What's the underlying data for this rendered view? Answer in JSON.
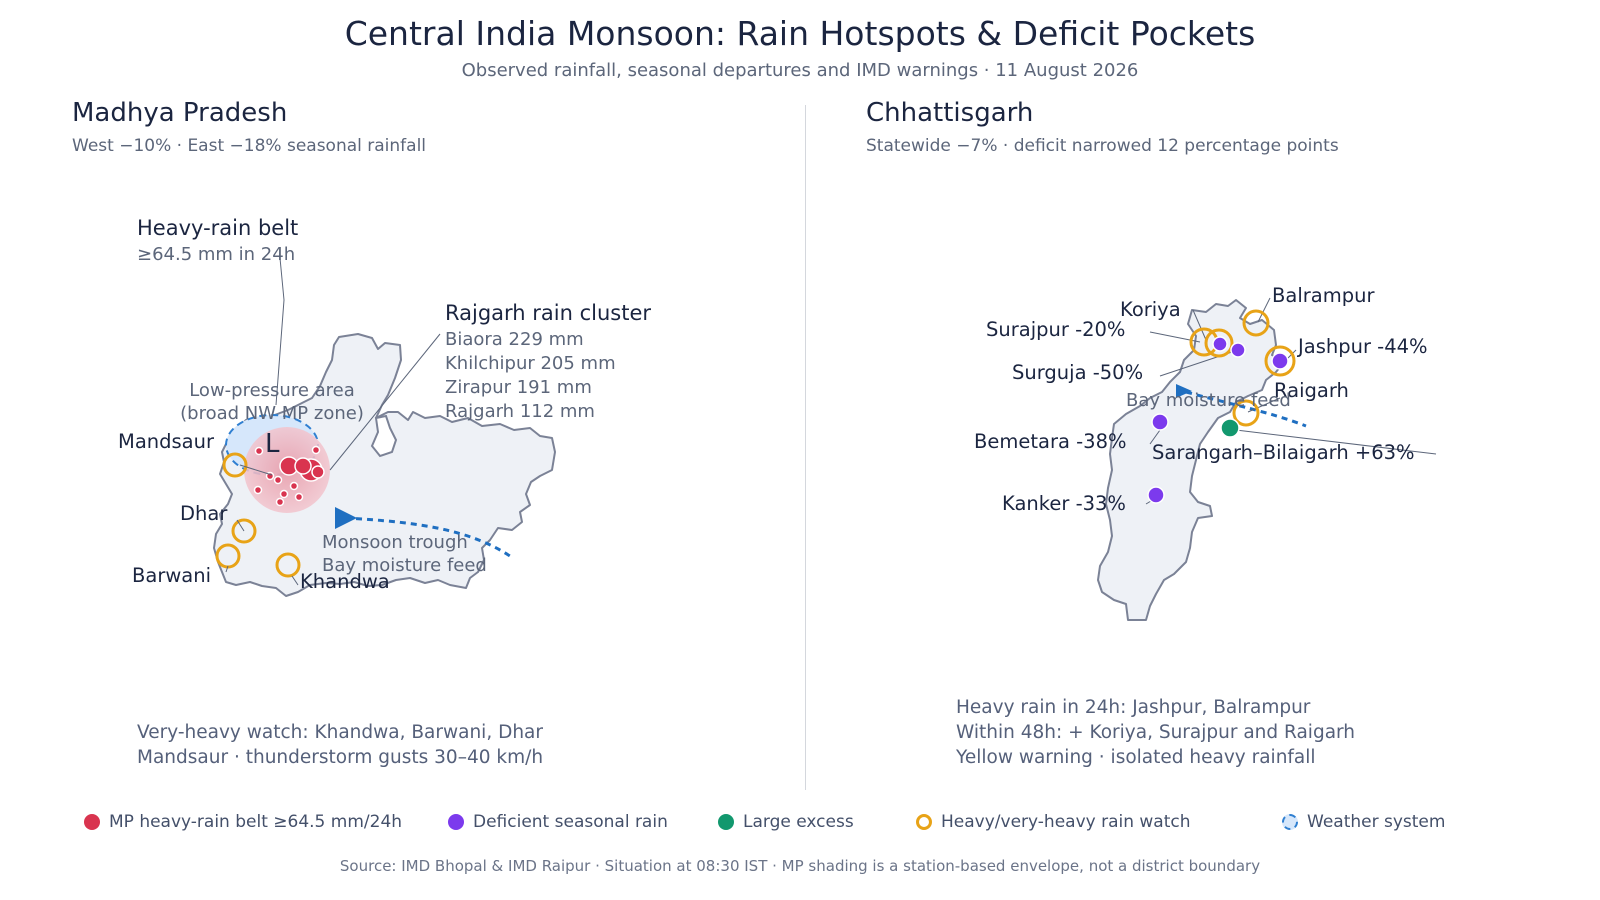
{
  "title": "Central India Monsoon: Rain Hotspots & Deficit Pockets",
  "subtitle": "Observed rainfall, seasonal departures and IMD warnings · 11 August 2026",
  "mp": {
    "title": "Madhya Pradesh",
    "subtitle": "West −10% · East −18% seasonal rainfall",
    "heavy_belt_title": "Heavy-rain belt",
    "heavy_belt_sub": "≥64.5 mm in 24h",
    "cluster_title": "Rajgarh rain cluster",
    "cluster_lines": [
      "Biaora 229 mm",
      "Khilchipur 205 mm",
      "Zirapur 191 mm",
      "Rajgarh 112 mm"
    ],
    "low_line1": "Low-pressure area",
    "low_line2": "(broad NW MP zone)",
    "low_symbol": "L",
    "trough_line1": "Monsoon trough",
    "trough_line2": "Bay moisture feed",
    "districts": [
      "Mandsaur",
      "Dhar",
      "Barwani",
      "Khandwa"
    ],
    "note_lines": [
      "Very-heavy watch: Khandwa, Barwani, Dhar",
      "Mandsaur · thunderstorm gusts 30–40 km/h"
    ]
  },
  "cg": {
    "title": "Chhattisgarh",
    "subtitle": "Statewide −7% · deficit narrowed 12 percentage points",
    "labels": {
      "koriya": "Koriya",
      "balrampur": "Balrampur",
      "surajpur": "Surajpur -20%",
      "jashpur": "Jashpur -44%",
      "surguja": "Surguja -50%",
      "raigarh": "Raigarh",
      "bay": "Bay moisture feed",
      "bemetara": "Bemetara -38%",
      "sarangarh": "Sarangarh–Bilaigarh +63%",
      "kanker": "Kanker -33%"
    },
    "note_lines": [
      "Heavy rain in 24h: Jashpur, Balrampur",
      "Within 48h: + Koriya, Surajpur and Raigarh",
      "Yellow warning · isolated heavy rainfall"
    ]
  },
  "legend": [
    {
      "label": "MP heavy-rain belt ≥64.5 mm/24h",
      "color": "#d9344f",
      "style": "filled"
    },
    {
      "label": "Deficient seasonal rain",
      "color": "#7c3aed",
      "style": "filled"
    },
    {
      "label": "Large excess",
      "color": "#12986e",
      "style": "filled"
    },
    {
      "label": "Heavy/very-heavy rain watch",
      "color": "#e8a317",
      "style": "ring"
    },
    {
      "label": "Weather system",
      "color": "#2f7fd1",
      "style": "dashed"
    }
  ],
  "source": "Source: IMD Bhopal & IMD Raipur · Situation at 08:30 IST · MP shading is a station-based envelope, not a district boundary",
  "colors": {
    "land": "#eef1f6",
    "border": "#7b8296",
    "heavy": "#d9344f",
    "deficit": "#7c3aed",
    "excess": "#12986e",
    "watch": "#e8a317",
    "system": "#2f7fd1",
    "arrow": "#1f6fc1"
  }
}
